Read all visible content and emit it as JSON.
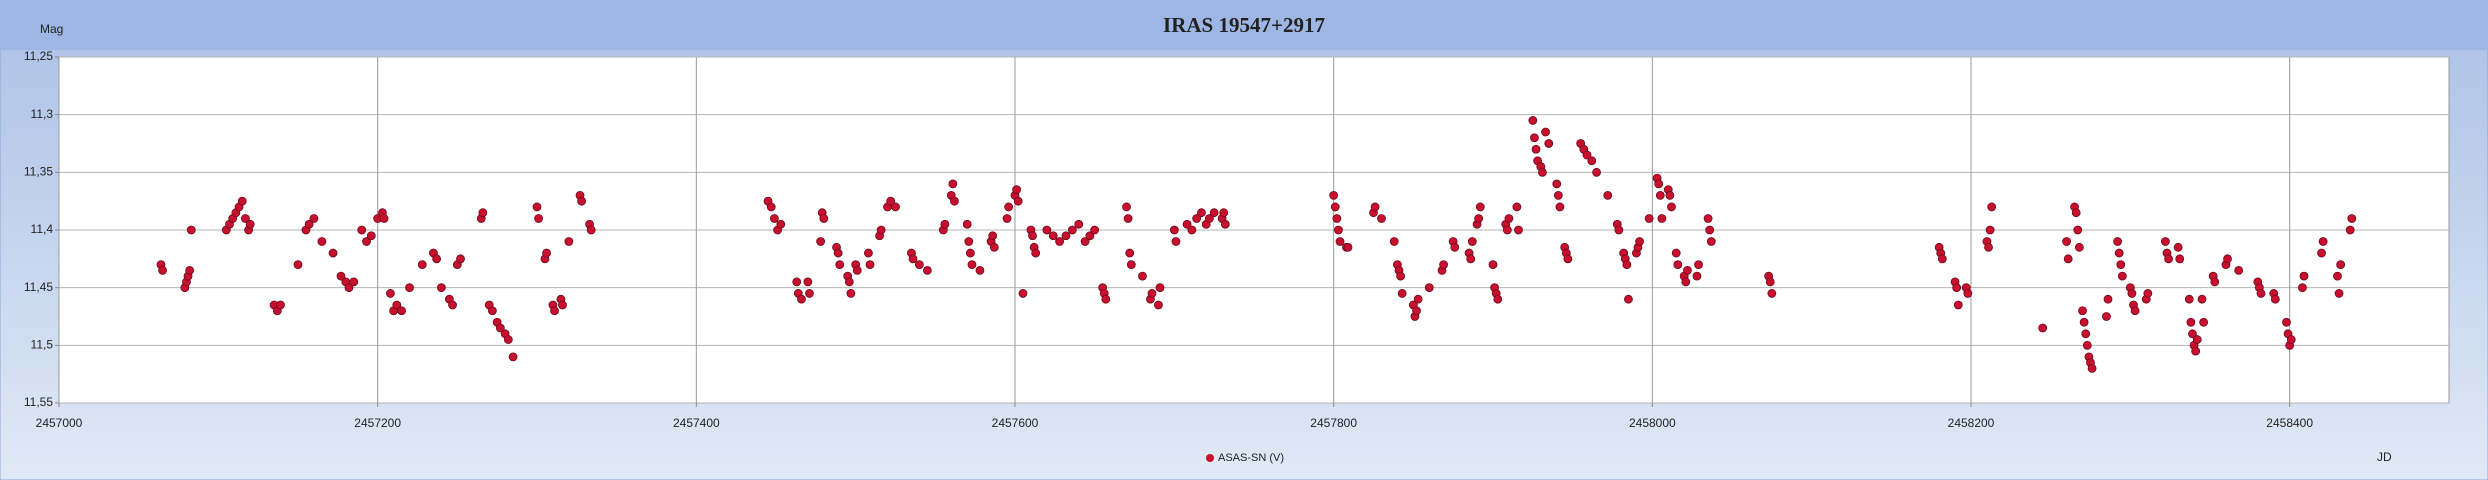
{
  "chart_data": {
    "type": "scatter",
    "title": "IRAS 19547+2917",
    "x_label": "JD",
    "y_label": "Mag",
    "xlim": [
      2457000,
      2458500
    ],
    "xticks": [
      2457000,
      2457200,
      2457400,
      2457600,
      2457800,
      2458000,
      2458200,
      2458400
    ],
    "ylim": [
      11.25,
      11.55
    ],
    "y_reversed": true,
    "yticks": [
      {
        "value": 11.25,
        "label": "11,25"
      },
      {
        "value": 11.3,
        "label": "11,3"
      },
      {
        "value": 11.35,
        "label": "11,35"
      },
      {
        "value": 11.4,
        "label": "11,4"
      },
      {
        "value": 11.45,
        "label": "11,45"
      },
      {
        "value": 11.5,
        "label": "11,5"
      },
      {
        "value": 11.55,
        "label": "11,55"
      }
    ],
    "grid": true,
    "legend": "bottom",
    "x": [
      2457064,
      2457065,
      2457079,
      2457080,
      2457081,
      2457082,
      2457083,
      2457105,
      2457107,
      2457109,
      2457111,
      2457113,
      2457115,
      2457117,
      2457119,
      2457120,
      2457135,
      2457137,
      2457139,
      2457150,
      2457155,
      2457157,
      2457160,
      2457165,
      2457172,
      2457177,
      2457180,
      2457182,
      2457185,
      2457190,
      2457193,
      2457196,
      2457200,
      2457203,
      2457204,
      2457208,
      2457210,
      2457212,
      2457215,
      2457220,
      2457228,
      2457235,
      2457237,
      2457240,
      2457245,
      2457247,
      2457250,
      2457252,
      2457265,
      2457266,
      2457270,
      2457272,
      2457275,
      2457277,
      2457280,
      2457282,
      2457285,
      2457300,
      2457301,
      2457305,
      2457306,
      2457310,
      2457311,
      2457315,
      2457316,
      2457320,
      2457327,
      2457328,
      2457333,
      2457334,
      2457445,
      2457447,
      2457449,
      2457451,
      2457453,
      2457463,
      2457464,
      2457466,
      2457470,
      2457471,
      2457478,
      2457479,
      2457480,
      2457488,
      2457489,
      2457490,
      2457495,
      2457496,
      2457497,
      2457500,
      2457501,
      2457508,
      2457509,
      2457515,
      2457516,
      2457520,
      2457522,
      2457525,
      2457535,
      2457536,
      2457540,
      2457545,
      2457555,
      2457556,
      2457560,
      2457561,
      2457562,
      2457570,
      2457571,
      2457572,
      2457573,
      2457578,
      2457585,
      2457586,
      2457587,
      2457595,
      2457596,
      2457600,
      2457601,
      2457602,
      2457605,
      2457610,
      2457611,
      2457612,
      2457613,
      2457620,
      2457624,
      2457628,
      2457632,
      2457636,
      2457640,
      2457644,
      2457647,
      2457650,
      2457655,
      2457656,
      2457657,
      2457670,
      2457671,
      2457672,
      2457673,
      2457680,
      2457685,
      2457686,
      2457690,
      2457691,
      2457700,
      2457701,
      2457708,
      2457711,
      2457714,
      2457717,
      2457720,
      2457722,
      2457725,
      2457730,
      2457731,
      2457732,
      2457800,
      2457801,
      2457802,
      2457803,
      2457804,
      2457808,
      2457809,
      2457825,
      2457826,
      2457830,
      2457838,
      2457840,
      2457841,
      2457842,
      2457843,
      2457850,
      2457851,
      2457852,
      2457853,
      2457860,
      2457868,
      2457869,
      2457875,
      2457876,
      2457885,
      2457886,
      2457887,
      2457890,
      2457891,
      2457892,
      2457900,
      2457901,
      2457902,
      2457903,
      2457908,
      2457909,
      2457910,
      2457915,
      2457916,
      2457925,
      2457926,
      2457927,
      2457928,
      2457930,
      2457931,
      2457933,
      2457935,
      2457940,
      2457941,
      2457942,
      2457945,
      2457946,
      2457947,
      2457955,
      2457957,
      2457959,
      2457962,
      2457965,
      2457972,
      2457978,
      2457979,
      2457982,
      2457983,
      2457984,
      2457985,
      2457990,
      2457991,
      2457992,
      2457998,
      2458003,
      2458004,
      2458005,
      2458006,
      2458010,
      2458011,
      2458012,
      2458015,
      2458016,
      2458020,
      2458021,
      2458022,
      2458028,
      2458029,
      2458035,
      2458036,
      2458037,
      2458073,
      2458074,
      2458075,
      2458180,
      2458181,
      2458182,
      2458190,
      2458191,
      2458192,
      2458197,
      2458198,
      2458210,
      2458211,
      2458212,
      2458213,
      2458245,
      2458260,
      2458261,
      2458265,
      2458266,
      2458267,
      2458268,
      2458270,
      2458271,
      2458272,
      2458273,
      2458274,
      2458275,
      2458276,
      2458285,
      2458286,
      2458292,
      2458293,
      2458294,
      2458295,
      2458300,
      2458301,
      2458302,
      2458303,
      2458310,
      2458311,
      2458322,
      2458323,
      2458324,
      2458330,
      2458331,
      2458337,
      2458338,
      2458339,
      2458340,
      2458341,
      2458342,
      2458345,
      2458346,
      2458352,
      2458353,
      2458360,
      2458361,
      2458368,
      2458380,
      2458381,
      2458382,
      2458390,
      2458391,
      2458398,
      2458399,
      2458400,
      2458401,
      2458408,
      2458409,
      2458420,
      2458421,
      2458430,
      2458431,
      2458432,
      2458438,
      2458439
    ],
    "series": [
      {
        "name": "ASAS-SN (V)",
        "color": "#c8102e",
        "values": [
          11.43,
          11.435,
          11.45,
          11.445,
          11.44,
          11.435,
          11.4,
          11.4,
          11.395,
          11.39,
          11.385,
          11.38,
          11.375,
          11.39,
          11.4,
          11.395,
          11.465,
          11.47,
          11.465,
          11.43,
          11.4,
          11.395,
          11.39,
          11.41,
          11.42,
          11.44,
          11.445,
          11.45,
          11.445,
          11.4,
          11.41,
          11.405,
          11.39,
          11.385,
          11.39,
          11.455,
          11.47,
          11.465,
          11.47,
          11.45,
          11.43,
          11.42,
          11.425,
          11.45,
          11.46,
          11.465,
          11.43,
          11.425,
          11.39,
          11.385,
          11.465,
          11.47,
          11.48,
          11.485,
          11.49,
          11.495,
          11.51,
          11.38,
          11.39,
          11.425,
          11.42,
          11.465,
          11.47,
          11.46,
          11.465,
          11.41,
          11.37,
          11.375,
          11.395,
          11.4,
          11.375,
          11.38,
          11.39,
          11.4,
          11.395,
          11.445,
          11.455,
          11.46,
          11.445,
          11.455,
          11.41,
          11.385,
          11.39,
          11.415,
          11.42,
          11.43,
          11.44,
          11.445,
          11.455,
          11.43,
          11.435,
          11.42,
          11.43,
          11.405,
          11.4,
          11.38,
          11.375,
          11.38,
          11.42,
          11.425,
          11.43,
          11.435,
          11.4,
          11.395,
          11.37,
          11.36,
          11.375,
          11.395,
          11.41,
          11.42,
          11.43,
          11.435,
          11.41,
          11.405,
          11.415,
          11.39,
          11.38,
          11.37,
          11.365,
          11.375,
          11.455,
          11.4,
          11.405,
          11.415,
          11.42,
          11.4,
          11.405,
          11.41,
          11.405,
          11.4,
          11.395,
          11.41,
          11.405,
          11.4,
          11.45,
          11.455,
          11.46,
          11.38,
          11.39,
          11.42,
          11.43,
          11.44,
          11.46,
          11.455,
          11.465,
          11.45,
          11.4,
          11.41,
          11.395,
          11.4,
          11.39,
          11.385,
          11.395,
          11.39,
          11.385,
          11.39,
          11.385,
          11.395,
          11.37,
          11.38,
          11.39,
          11.4,
          11.41,
          11.415,
          11.415,
          11.385,
          11.38,
          11.39,
          11.41,
          11.43,
          11.435,
          11.44,
          11.455,
          11.465,
          11.475,
          11.47,
          11.46,
          11.45,
          11.435,
          11.43,
          11.41,
          11.415,
          11.42,
          11.425,
          11.41,
          11.395,
          11.39,
          11.38,
          11.43,
          11.45,
          11.455,
          11.46,
          11.395,
          11.4,
          11.39,
          11.38,
          11.4,
          11.305,
          11.32,
          11.33,
          11.34,
          11.345,
          11.35,
          11.315,
          11.325,
          11.36,
          11.37,
          11.38,
          11.415,
          11.42,
          11.425,
          11.325,
          11.33,
          11.335,
          11.34,
          11.35,
          11.37,
          11.395,
          11.4,
          11.42,
          11.425,
          11.43,
          11.46,
          11.42,
          11.415,
          11.41,
          11.39,
          11.355,
          11.36,
          11.37,
          11.39,
          11.365,
          11.37,
          11.38,
          11.42,
          11.43,
          11.44,
          11.445,
          11.435,
          11.44,
          11.43,
          11.39,
          11.4,
          11.41,
          11.44,
          11.445,
          11.455,
          11.415,
          11.42,
          11.425,
          11.445,
          11.45,
          11.465,
          11.45,
          11.455,
          11.41,
          11.415,
          11.4,
          11.38,
          11.485,
          11.41,
          11.425,
          11.38,
          11.385,
          11.4,
          11.415,
          11.47,
          11.48,
          11.49,
          11.5,
          11.51,
          11.515,
          11.52,
          11.475,
          11.46,
          11.41,
          11.42,
          11.43,
          11.44,
          11.45,
          11.455,
          11.465,
          11.47,
          11.46,
          11.455,
          11.41,
          11.42,
          11.425,
          11.415,
          11.425,
          11.46,
          11.48,
          11.49,
          11.5,
          11.505,
          11.495,
          11.46,
          11.48,
          11.44,
          11.445,
          11.43,
          11.425,
          11.435,
          11.445,
          11.45,
          11.455,
          11.455,
          11.46,
          11.48,
          11.49,
          11.5,
          11.495,
          11.45,
          11.44,
          11.42,
          11.41,
          11.44,
          11.455,
          11.43,
          11.4,
          11.39
        ]
      }
    ]
  }
}
